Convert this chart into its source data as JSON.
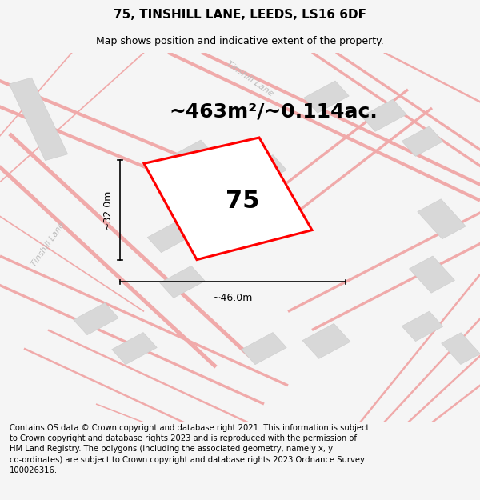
{
  "title_line1": "75, TINSHILL LANE, LEEDS, LS16 6DF",
  "title_line2": "Map shows position and indicative extent of the property.",
  "area_label": "~463m²/~0.114ac.",
  "property_number": "75",
  "dim_width": "~46.0m",
  "dim_height": "~32.0m",
  "road_label_diag": "Tinshill Lane",
  "road_label_left": "Tinshill Lane",
  "footer_text": "Contains OS data © Crown copyright and database right 2021. This information is subject to Crown copyright and database rights 2023 and is reproduced with the permission of HM Land Registry. The polygons (including the associated geometry, namely x, y co-ordinates) are subject to Crown copyright and database rights 2023 Ordnance Survey 100026316.",
  "bg_color": "#f5f5f5",
  "map_bg": "#ffffff",
  "plot_color": "#ff0000",
  "building_color": "#d8d8d8",
  "building_edge": "#cccccc",
  "road_color": "#f0aaaa",
  "title_fontsize": 11,
  "subtitle_fontsize": 9,
  "area_fontsize": 18,
  "number_fontsize": 22,
  "footer_fontsize": 7.2,
  "dim_fontsize": 9,
  "road_label_fontsize": 8,
  "road_label_color": "#bbbbbb"
}
